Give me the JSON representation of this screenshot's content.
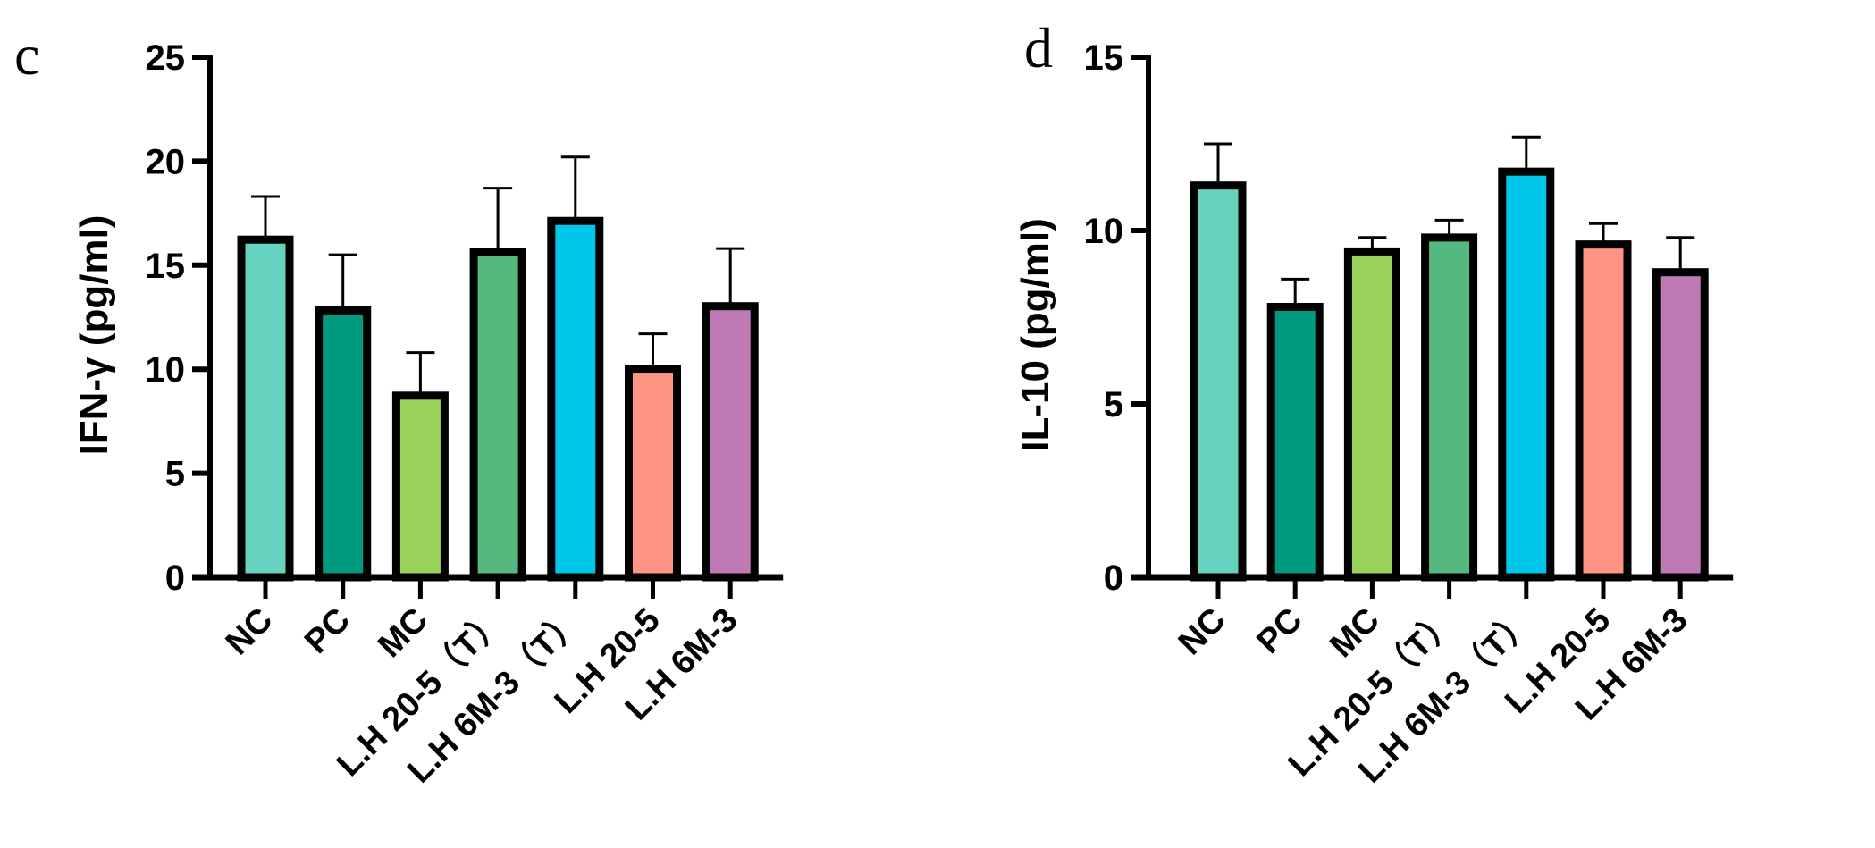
{
  "panels": [
    {
      "letter": "c"
    },
    {
      "letter": "d"
    }
  ],
  "chart_data": [
    {
      "type": "bar",
      "panel": "c",
      "title": "",
      "xlabel": "",
      "ylabel": "IFN-γ (pg/ml)",
      "ylim": [
        0,
        25
      ],
      "yticks": [
        0,
        5,
        10,
        15,
        20,
        25
      ],
      "grid": false,
      "legend": null,
      "error_bars": true,
      "categories": [
        "NC",
        "PC",
        "MC",
        "L.H 20-5（T）",
        "L.H 6M-3（T）",
        "L.H 20-5",
        "L.H 6M-3"
      ],
      "values": [
        16.4,
        13.0,
        8.9,
        15.8,
        17.3,
        10.2,
        13.2
      ],
      "errors": [
        1.9,
        2.5,
        1.9,
        2.9,
        2.9,
        1.5,
        2.6
      ],
      "colors": [
        "#66D3C0",
        "#009A80",
        "#99D35A",
        "#55B87E",
        "#00C6EA",
        "#FF9484",
        "#BF7AB6"
      ]
    },
    {
      "type": "bar",
      "panel": "d",
      "title": "",
      "xlabel": "",
      "ylabel": "IL-10 (pg/ml)",
      "ylim": [
        0,
        15
      ],
      "yticks": [
        0,
        5,
        10,
        15
      ],
      "grid": false,
      "legend": null,
      "error_bars": true,
      "categories": [
        "NC",
        "PC",
        "MC",
        "L.H 20-5（T）",
        "L.H 6M-3（T）",
        "L.H 20-5",
        "L.H 6M-3"
      ],
      "values": [
        11.4,
        7.9,
        9.5,
        9.9,
        11.8,
        9.7,
        8.9
      ],
      "errors": [
        1.1,
        0.7,
        0.3,
        0.4,
        0.9,
        0.5,
        0.9
      ],
      "colors": [
        "#66D3C0",
        "#009A80",
        "#99D35A",
        "#55B87E",
        "#00C6EA",
        "#FF9484",
        "#BF7AB6"
      ]
    }
  ]
}
